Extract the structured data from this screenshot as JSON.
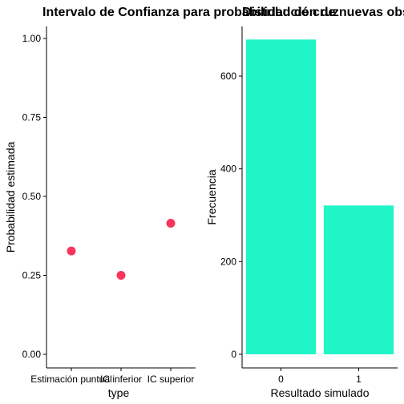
{
  "chart_data": [
    {
      "type": "scatter",
      "title": "Intervalo de Confianza para probabilidad de cruz",
      "xlabel": "type",
      "ylabel": "Probabilidad estimada",
      "categories": [
        "Estimación puntual",
        "IC inferior",
        "IC superior"
      ],
      "values": [
        0.327,
        0.25,
        0.415
      ],
      "ylim": [
        0,
        1.04
      ],
      "yticks": [
        0.0,
        0.25,
        0.5,
        0.75,
        1.0
      ],
      "ytick_labels": [
        "0.00",
        "0.25",
        "0.50",
        "0.75",
        "1.00"
      ],
      "grid": false,
      "point_color": "#f8345c"
    },
    {
      "type": "bar",
      "title": "Distribución de nuevas observaciones",
      "xlabel": "Resultado simulado",
      "ylabel": "Frecuencia",
      "categories": [
        "0",
        "1"
      ],
      "values": [
        679,
        321
      ],
      "ylim": [
        0,
        714
      ],
      "yticks": [
        0,
        200,
        400,
        600
      ],
      "ytick_labels": [
        "0",
        "200",
        "400",
        "600"
      ],
      "grid": false,
      "bar_color": "#20f5c8"
    }
  ]
}
